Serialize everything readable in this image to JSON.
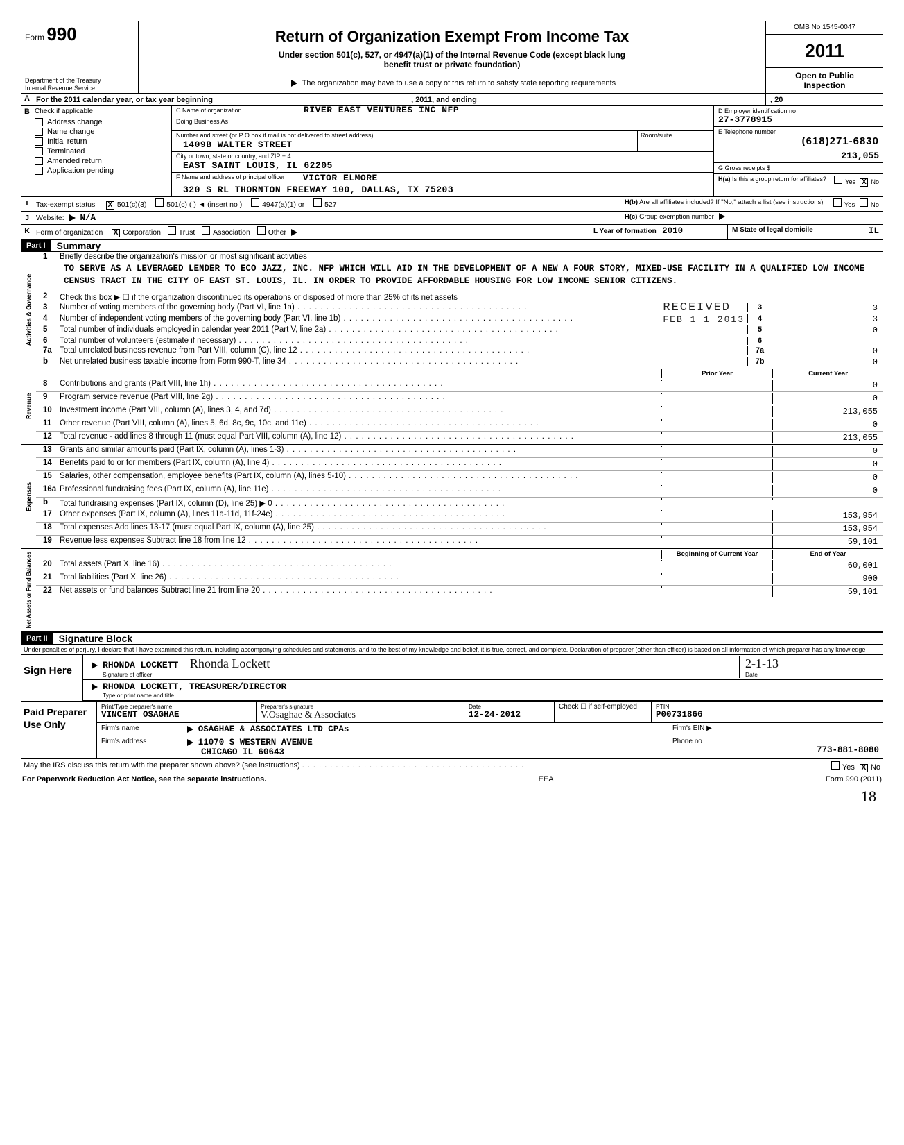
{
  "header": {
    "form_label": "Form",
    "form_number": "990",
    "dept1": "Department of the Treasury",
    "dept2": "Internal Revenue Service",
    "title": "Return of Organization Exempt From Income Tax",
    "subtitle1": "Under section 501(c), 527, or 4947(a)(1) of the Internal Revenue Code (except black lung",
    "subtitle2": "benefit trust or private foundation)",
    "arrow_note": "The organization may have to use a copy of this return to satisfy state reporting requirements",
    "omb": "OMB No 1545-0047",
    "year": "2011",
    "open1": "Open to Public",
    "open2": "Inspection"
  },
  "rowA": {
    "text_left": "For the 2011 calendar year, or tax year beginning",
    "text_mid": ", 2011, and ending",
    "text_right": ", 20"
  },
  "sectionB": {
    "b_label": "Check if applicable",
    "checks": [
      "Address change",
      "Name change",
      "Initial return",
      "Terminated",
      "Amended return",
      "Application pending"
    ],
    "c_label": "C  Name of organization",
    "c_value": "RIVER EAST VENTURES INC NFP",
    "dba_label": "Doing Business As",
    "addr_label": "Number and street (or P O box if mail is not delivered to street address)",
    "addr_value": "1409B WALTER STREET",
    "room_label": "Room/suite",
    "city_label": "City or town, state or country, and ZIP + 4",
    "city_value": "EAST SAINT LOUIS, IL 62205",
    "d_label": "D  Employer identification no",
    "d_value": "27-3778915",
    "e_label": "E  Telephone number",
    "e_value": "(618)271-6830",
    "g_label": "G  Gross receipts  $",
    "g_value": "213,055",
    "f_label": "F  Name and address of principal officer",
    "f_name": "VICTOR ELMORE",
    "f_addr": "320 S RL THORNTON FREEWAY 100, DALLAS, TX 75203",
    "h_a": "Is this a group return for affiliates?",
    "h_a_yes": "Yes",
    "h_a_no": "No",
    "h_b": "Are all affiliates included?  If \"No,\" attach a list (see instructions)",
    "h_c": "Group exemption number"
  },
  "rowI": {
    "label": "Tax-exempt status",
    "opt1": "501(c)(3)",
    "opt2": "501(c) (",
    "opt2b": ")  ◄  (insert no )",
    "opt3": "4947(a)(1) or",
    "opt4": "527"
  },
  "rowJ": {
    "label": "Website:",
    "val": "N/A"
  },
  "rowK": {
    "label": "Form of organization",
    "opts": [
      "Corporation",
      "Trust",
      "Association",
      "Other"
    ],
    "l_label": "L  Year of formation",
    "l_val": "2010",
    "m_label": "M  State of legal domicile",
    "m_val": "IL"
  },
  "part1": {
    "bar": "Part I",
    "title": "Summary"
  },
  "summary": {
    "vlabels": {
      "a": "Activities & Governance",
      "r": "Revenue",
      "e": "Expenses",
      "n": "Net Assets or Fund Balances"
    },
    "q1_label": "Briefly describe the organization's mission or most significant activities",
    "mission": "TO SERVE AS A LEVERAGED LENDER TO ECO JAZZ, INC. NFP WHICH WILL AID IN THE DEVELOPMENT OF A NEW A FOUR STORY, MIXED-USE FACILITY IN A QUALIFIED LOW INCOME CENSUS TRACT IN THE CITY OF EAST ST. LOUIS, IL. IN ORDER TO PROVIDE AFFORDABLE HOUSING FOR LOW INCOME SENIOR CITIZENS.",
    "q2": "Check this box ▶ ☐ if the organization discontinued its operations or disposed of more than 25% of its net assets",
    "lines_top": [
      {
        "n": "3",
        "t": "Number of voting members of the governing body (Part VI, line 1a)",
        "c": "3",
        "v": "3"
      },
      {
        "n": "4",
        "t": "Number of independent voting members of the governing body (Part VI, line 1b)",
        "c": "4",
        "v": "3"
      },
      {
        "n": "5",
        "t": "Total number of individuals employed in calendar year 2011 (Part V, line 2a)",
        "c": "5",
        "v": "0"
      },
      {
        "n": "6",
        "t": "Total number of volunteers (estimate if necessary)",
        "c": "6",
        "v": ""
      },
      {
        "n": "7a",
        "t": "Total unrelated business revenue from Part VIII, column (C), line 12",
        "c": "7a",
        "v": "0"
      },
      {
        "n": "b",
        "t": "Net unrelated business taxable income from Form 990-T, line 34",
        "c": "7b",
        "v": "0"
      }
    ],
    "received_stamp": "RECEIVED",
    "received_date": "FEB 1 1 2013",
    "col_prior": "Prior Year",
    "col_current": "Current Year",
    "rev": [
      {
        "n": "8",
        "t": "Contributions and grants (Part VIII, line 1h)",
        "p": "",
        "c": "0"
      },
      {
        "n": "9",
        "t": "Program service revenue (Part VIII, line 2g)",
        "p": "",
        "c": "0"
      },
      {
        "n": "10",
        "t": "Investment income (Part VIII, column (A), lines 3, 4, and 7d)",
        "p": "",
        "c": "213,055"
      },
      {
        "n": "11",
        "t": "Other revenue (Part VIII, column (A), lines 5, 6d, 8c, 9c, 10c, and 11e)",
        "p": "",
        "c": "0"
      },
      {
        "n": "12",
        "t": "Total revenue - add lines 8 through 11 (must equal Part VIII, column (A), line 12)",
        "p": "",
        "c": "213,055"
      }
    ],
    "exp": [
      {
        "n": "13",
        "t": "Grants and similar amounts paid (Part IX, column (A), lines 1-3)",
        "p": "",
        "c": "0"
      },
      {
        "n": "14",
        "t": "Benefits paid to or for members (Part IX, column (A), line 4)",
        "p": "",
        "c": "0"
      },
      {
        "n": "15",
        "t": "Salaries, other compensation, employee benefits (Part IX, column (A), lines 5-10)",
        "p": "",
        "c": "0"
      },
      {
        "n": "16a",
        "t": "Professional fundraising fees (Part IX, column (A), line 11e)",
        "p": "",
        "c": "0"
      },
      {
        "n": "b",
        "t": "Total fundraising expenses (Part IX, column (D), line 25) ▶            0",
        "p": "",
        "c": ""
      },
      {
        "n": "17",
        "t": "Other expenses (Part IX, column (A), lines 11a-11d, 11f-24e)",
        "p": "",
        "c": "153,954"
      },
      {
        "n": "18",
        "t": "Total expenses  Add lines 13-17 (must equal Part IX, column (A), line 25)",
        "p": "",
        "c": "153,954"
      },
      {
        "n": "19",
        "t": "Revenue less expenses  Subtract line 18 from line 12",
        "p": "",
        "c": "59,101"
      }
    ],
    "col_begin": "Beginning of Current Year",
    "col_end": "End of Year",
    "net": [
      {
        "n": "20",
        "t": "Total assets (Part X, line 16)",
        "p": "",
        "c": "60,001"
      },
      {
        "n": "21",
        "t": "Total liabilities (Part X, line 26)",
        "p": "",
        "c": "900"
      },
      {
        "n": "22",
        "t": "Net assets or fund balances  Subtract line 21 from line 20",
        "p": "",
        "c": "59,101"
      }
    ]
  },
  "part2": {
    "bar": "Part II",
    "title": "Signature Block"
  },
  "sig": {
    "penalty": "Under penalties of perjury, I declare that I have examined this return, including accompanying schedules and statements, and to the best of my knowledge and belief, it is true, correct, and complete. Declaration of preparer (other than officer) is based on all information of which preparer has any knowledge",
    "sign_here": "Sign Here",
    "officer_name": "RHONDA LOCKETT",
    "sig_of_officer": "Signature of officer",
    "date_label": "Date",
    "date_val": "2-1-13",
    "title_line": "RHONDA LOCKETT, TREASURER/DIRECTOR",
    "title_lab": "Type or print name and title"
  },
  "paid": {
    "label": "Paid Preparer Use Only",
    "r1": {
      "c1_lab": "Print/Type preparer's name",
      "c1_val": "VINCENT OSAGHAE",
      "c2_lab": "Preparer's signature",
      "c2_val": "V.Osaghae & Associates",
      "c3_lab": "Date",
      "c3_val": "12-24-2012",
      "c4_lab": "Check ☐ if self-employed",
      "c5_lab": "PTIN",
      "c5_val": "P00731866"
    },
    "r2": {
      "lab": "Firm's name",
      "val": "OSAGHAE & ASSOCIATES LTD CPAs",
      "ein_lab": "Firm's EIN ▶"
    },
    "r3": {
      "lab": "Firm's address",
      "val1": "11070 S WESTERN AVENUE",
      "val2": "CHICAGO IL 60643",
      "ph_lab": "Phone no",
      "ph_val": "773-881-8080"
    }
  },
  "discuss": {
    "q": "May the IRS discuss this return with the preparer shown above? (see instructions)",
    "yes": "Yes",
    "no": "No"
  },
  "footer": {
    "left": "For Paperwork Reduction Act Notice, see the separate instructions.",
    "mid": "EEA",
    "right": "Form 990 (2011)"
  },
  "pagenum": "18"
}
